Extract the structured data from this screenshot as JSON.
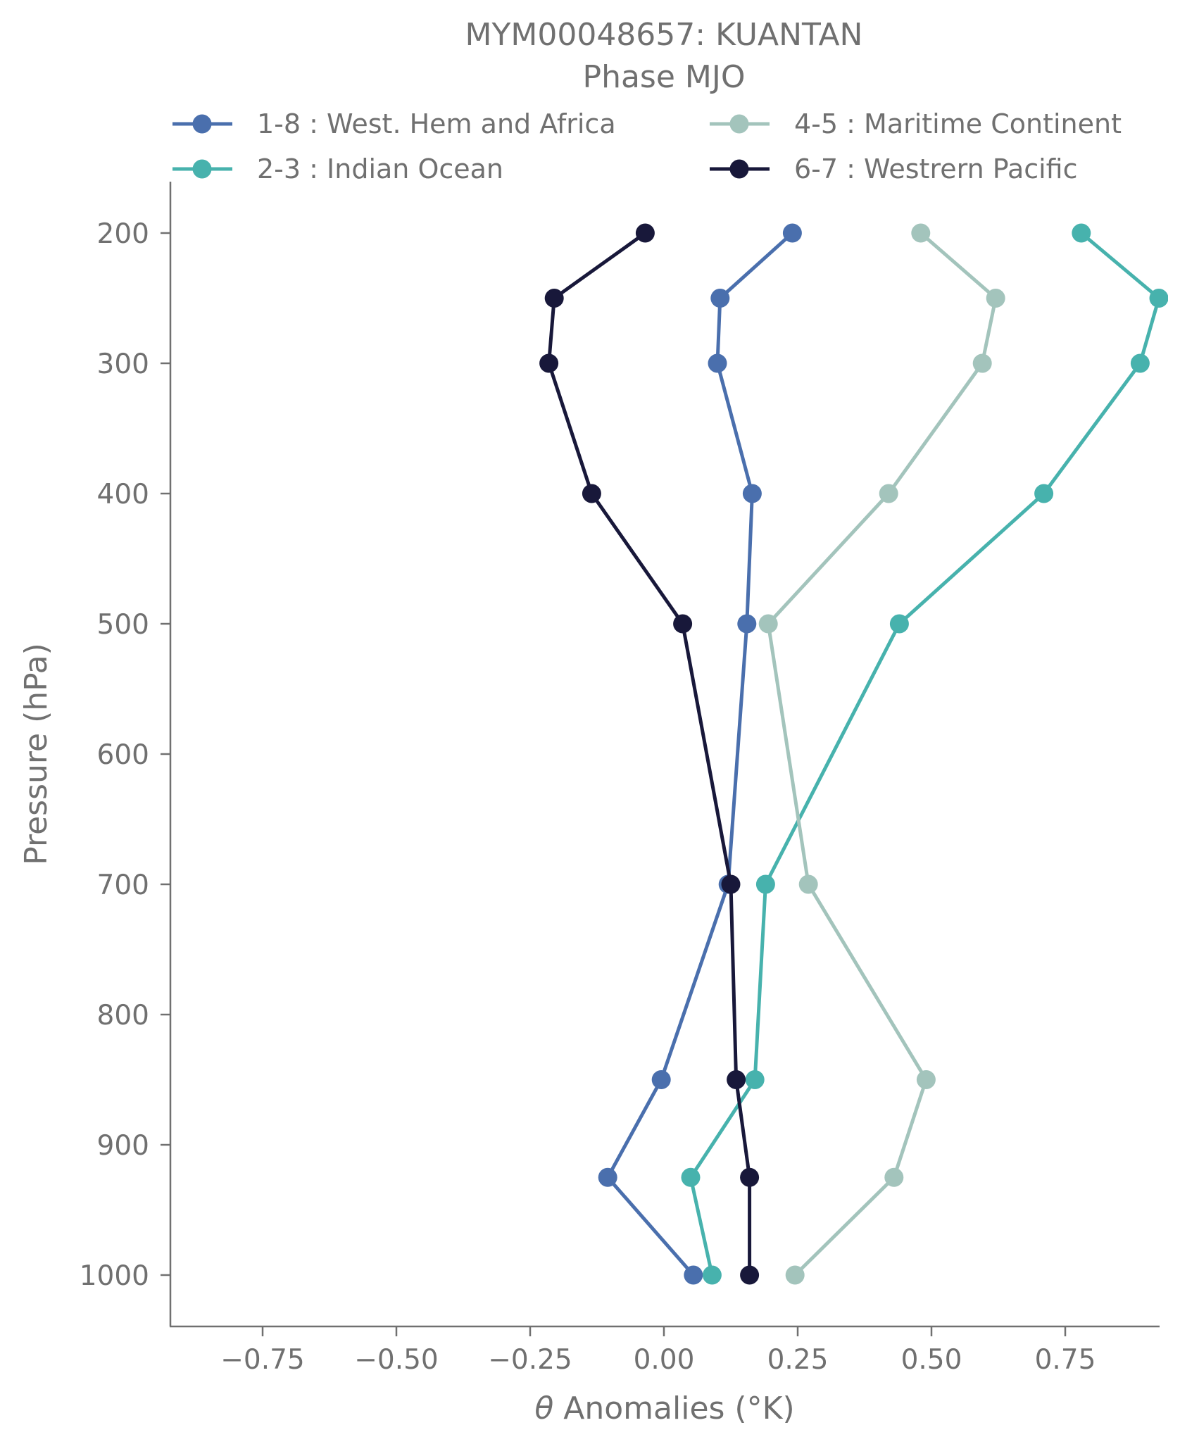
{
  "chart_data": {
    "type": "line",
    "title": "MYM00048657: KUANTAN",
    "subtitle": "Phase MJO",
    "xlabel_italic": "θ",
    "xlabel": " Anomalies (°K)",
    "ylabel": "Pressure (hPa)",
    "xlim": [
      -0.935,
      0.925
    ],
    "ylim": [
      1040,
      160
    ],
    "y_inverted": true,
    "xticks": [
      -0.75,
      -0.5,
      -0.25,
      0.0,
      0.25,
      0.5,
      0.75
    ],
    "xtick_labels": [
      "−0.75",
      "−0.50",
      "−0.25",
      "0.00",
      "0.25",
      "0.50",
      "0.75"
    ],
    "yticks": [
      200,
      300,
      400,
      500,
      600,
      700,
      800,
      900,
      1000
    ],
    "ytick_labels": [
      "200",
      "300",
      "400",
      "500",
      "600",
      "700",
      "800",
      "900",
      "1000"
    ],
    "pressure": [
      200,
      250,
      300,
      400,
      500,
      700,
      850,
      925,
      1000
    ],
    "legend_position": "top, two columns",
    "series": [
      {
        "name": "1-8 : West. Hem and Africa",
        "color": "#4a6fad",
        "values": [
          0.24,
          0.105,
          0.1,
          0.165,
          0.155,
          0.12,
          -0.005,
          -0.105,
          0.055
        ]
      },
      {
        "name": "2-3 : Indian Ocean",
        "color": "#47b2ad",
        "values": [
          0.78,
          0.925,
          0.89,
          0.71,
          0.44,
          0.19,
          0.17,
          0.05,
          0.09
        ]
      },
      {
        "name": "4-5 : Maritime Continent",
        "color": "#a3c4bc",
        "values": [
          0.48,
          0.62,
          0.595,
          0.42,
          0.195,
          0.27,
          0.49,
          0.43,
          0.245
        ]
      },
      {
        "name": "6-7 : Westrern Pacific",
        "color": "#18183a",
        "values": [
          -0.035,
          -0.205,
          -0.215,
          -0.135,
          0.035,
          0.125,
          0.135,
          0.16,
          0.16
        ]
      }
    ]
  }
}
